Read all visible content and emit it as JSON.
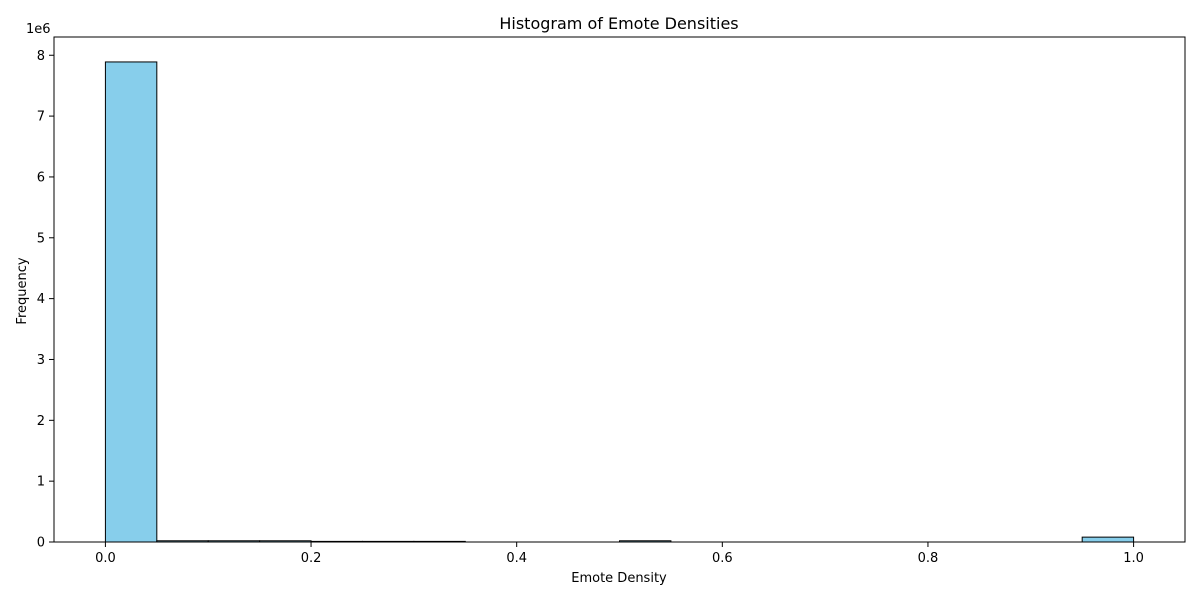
{
  "chart_data": {
    "type": "bar",
    "title": "Histogram of Emote Densities",
    "xlabel": "Emote Density",
    "ylabel": "Frequency",
    "y_scale_label": "1e6",
    "xlim": [
      -0.05,
      1.05
    ],
    "ylim": [
      0,
      8.3
    ],
    "x_ticks": [
      0.0,
      0.2,
      0.4,
      0.6,
      0.8,
      1.0
    ],
    "x_tick_labels": [
      "0.0",
      "0.2",
      "0.4",
      "0.6",
      "0.8",
      "1.0"
    ],
    "y_ticks": [
      0,
      1,
      2,
      3,
      4,
      5,
      6,
      7,
      8
    ],
    "y_tick_labels": [
      "0",
      "1",
      "2",
      "3",
      "4",
      "5",
      "6",
      "7",
      "8"
    ],
    "bin_edges": [
      0.0,
      0.05,
      0.1,
      0.15,
      0.2,
      0.25,
      0.3,
      0.35,
      0.4,
      0.45,
      0.5,
      0.55,
      0.6,
      0.65,
      0.7,
      0.75,
      0.8,
      0.85,
      0.9,
      0.95,
      1.0
    ],
    "series": [
      {
        "values": [
          7.89,
          0.02,
          0.02,
          0.02,
          0.01,
          0.01,
          0.01,
          0.0,
          0.0,
          0.0,
          0.02,
          0.0,
          0.0,
          0.0,
          0.0,
          0.0,
          0.0,
          0.0,
          0.0,
          0.08
        ]
      }
    ],
    "values_unit_note": "values in units of 1e6",
    "bar_color": "#87ceeb",
    "edge_color": "#000000",
    "grid": false
  }
}
